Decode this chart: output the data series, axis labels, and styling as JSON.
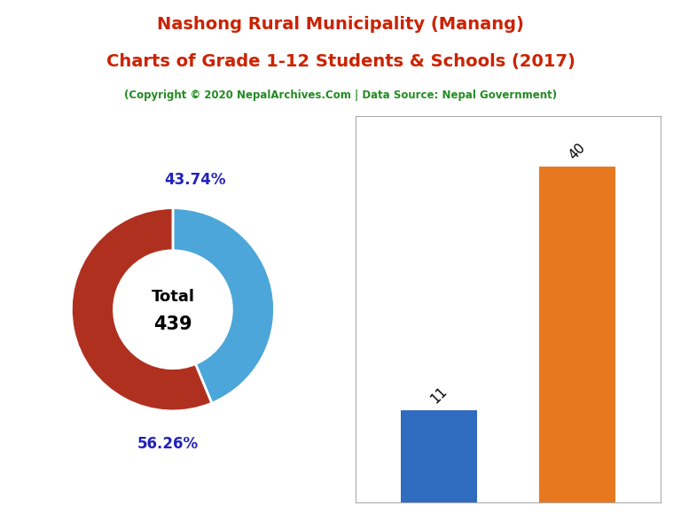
{
  "title_line1": "Nashong Rural Municipality (Manang)",
  "title_line2": "Charts of Grade 1-12 Students & Schools (2017)",
  "subtitle": "(Copyright © 2020 NepalArchives.Com | Data Source: Nepal Government)",
  "title_color": "#cc2200",
  "subtitle_color": "#228B22",
  "male_students": 192,
  "female_students": 247,
  "total_students": 439,
  "male_pct": 43.74,
  "female_pct": 56.26,
  "male_color": "#4da6d9",
  "female_color": "#b03020",
  "donut_label_color": "#2222bb",
  "total_schools": 11,
  "students_per_school": 40,
  "bar_color_schools": "#2f6bbf",
  "bar_color_sps": "#e87820",
  "bg_color": "#ffffff"
}
